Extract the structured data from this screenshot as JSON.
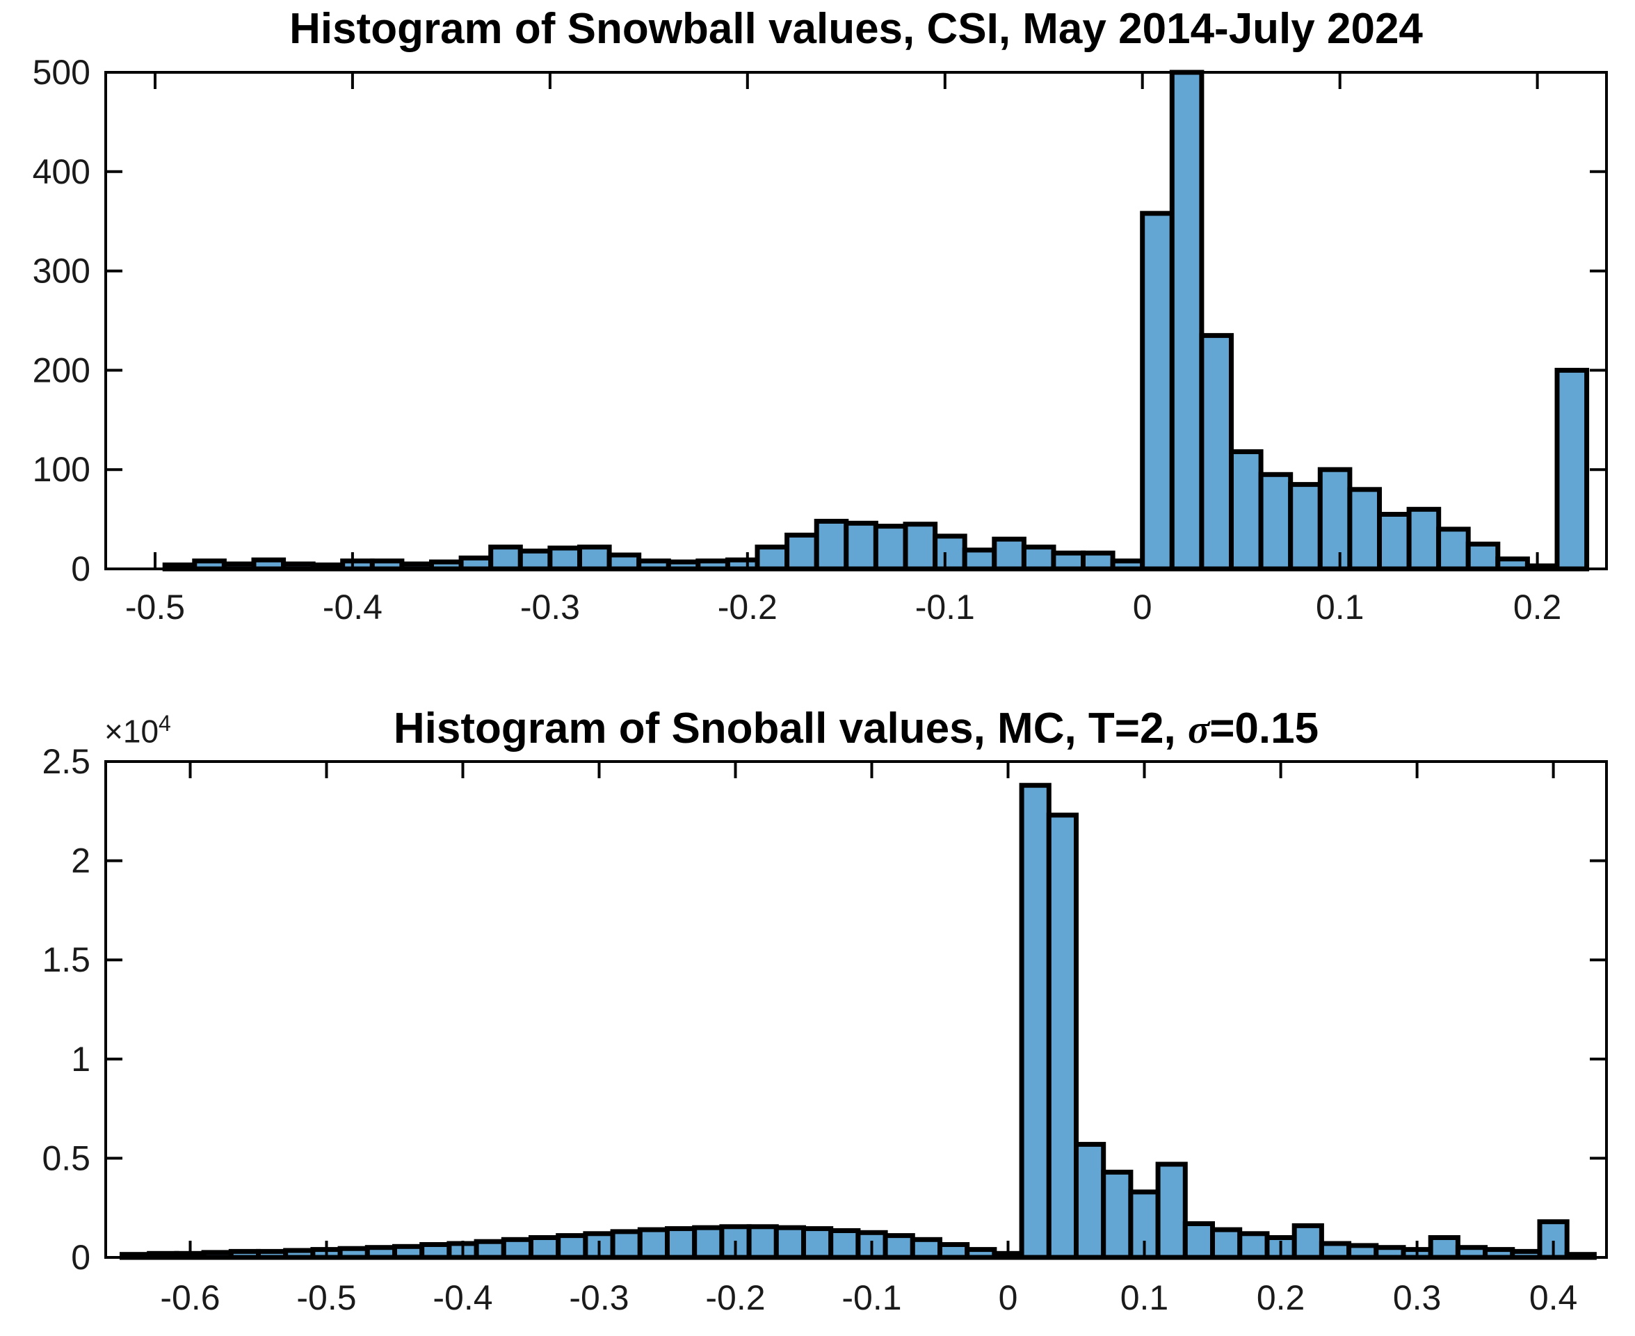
{
  "figure": {
    "background": "#ffffff",
    "bar_fill": "#63a6d3",
    "bar_edge": "#000000",
    "axis_color": "#000000"
  },
  "chart_data": [
    {
      "type": "bar",
      "title": "Histogram of Snowball values, CSI, May 2014-July 2024",
      "bin_start": -0.495,
      "bin_width": 0.015,
      "values": [
        4,
        8,
        5,
        9,
        5,
        4,
        8,
        8,
        5,
        7,
        11,
        22,
        18,
        21,
        22,
        14,
        8,
        7,
        8,
        9,
        22,
        34,
        48,
        46,
        43,
        45,
        33,
        19,
        30,
        22,
        16,
        16,
        8,
        358,
        500,
        235,
        118,
        95,
        85,
        100,
        80,
        55,
        60,
        40,
        25,
        10,
        3,
        200
      ],
      "xlim": [
        -0.525,
        0.235
      ],
      "ylim": [
        0,
        500
      ],
      "xticks": [
        -0.5,
        -0.4,
        -0.3,
        -0.2,
        -0.1,
        0,
        0.1,
        0.2
      ],
      "xtick_labels": [
        "-0.5",
        "-0.4",
        "-0.3",
        "-0.2",
        "-0.1",
        "0",
        "0.1",
        "0.2"
      ],
      "yticks": [
        0,
        100,
        200,
        300,
        400,
        500
      ],
      "ytick_labels": [
        "0",
        "100",
        "200",
        "300",
        "400",
        "500"
      ],
      "grid": "off",
      "legend": "none"
    },
    {
      "type": "bar",
      "title_prefix": "Histogram of Snoball values, MC, T=2, ",
      "title_sigma": "σ",
      "title_suffix": "=0.15",
      "y_exponent_base": "×10",
      "y_exponent_power": "4",
      "bin_start": -0.65,
      "bin_width": 0.02,
      "values": [
        150,
        200,
        200,
        250,
        300,
        300,
        350,
        400,
        450,
        500,
        550,
        650,
        700,
        800,
        900,
        1000,
        1100,
        1200,
        1300,
        1400,
        1450,
        1500,
        1550,
        1550,
        1500,
        1450,
        1350,
        1250,
        1100,
        900,
        650,
        400,
        200,
        23800,
        22300,
        5700,
        4300,
        3300,
        4700,
        1700,
        1400,
        1200,
        1000,
        1600,
        700,
        600,
        500,
        400,
        1000,
        500,
        400,
        300,
        1800,
        150
      ],
      "xlim": [
        -0.662,
        0.439
      ],
      "ylim": [
        0,
        25000
      ],
      "xticks": [
        -0.6,
        -0.5,
        -0.4,
        -0.3,
        -0.2,
        -0.1,
        0,
        0.1,
        0.2,
        0.3,
        0.4
      ],
      "xtick_labels": [
        "-0.6",
        "-0.5",
        "-0.4",
        "-0.3",
        "-0.2",
        "-0.1",
        "0",
        "0.1",
        "0.2",
        "0.3",
        "0.4"
      ],
      "yticks": [
        0,
        5000,
        10000,
        15000,
        20000,
        25000
      ],
      "ytick_labels": [
        "0",
        "0.5",
        "1",
        "1.5",
        "2",
        "2.5"
      ],
      "grid": "off",
      "legend": "none"
    }
  ]
}
